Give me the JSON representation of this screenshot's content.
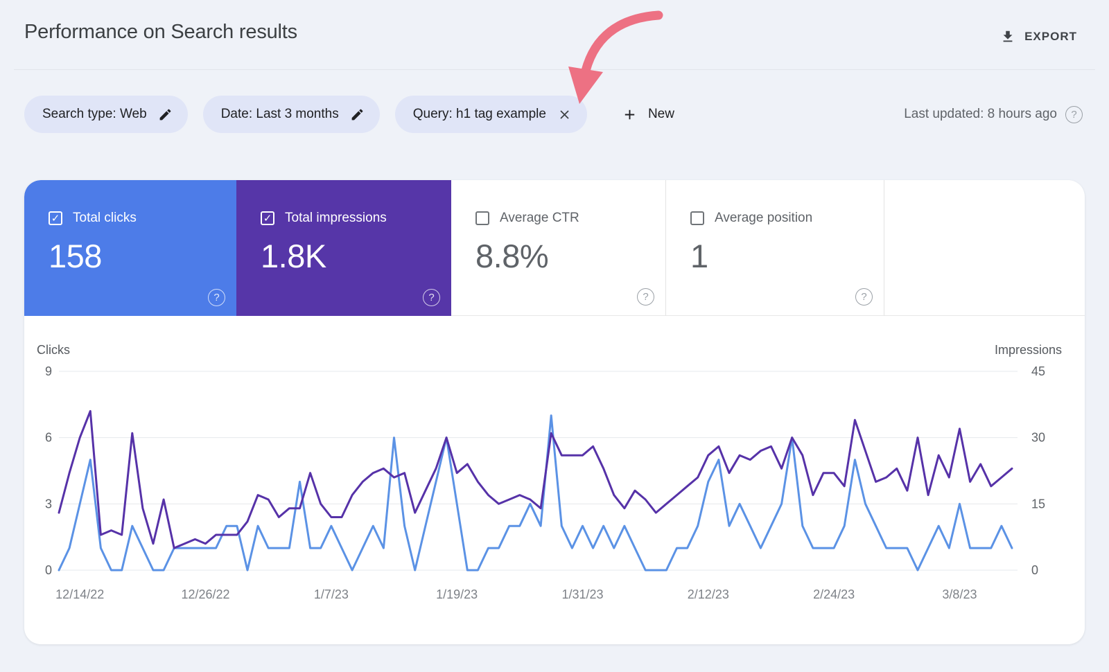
{
  "header": {
    "title": "Performance on Search results",
    "export_label": "EXPORT"
  },
  "filters": {
    "chips": [
      {
        "label": "Search type: Web",
        "icon": "pencil"
      },
      {
        "label": "Date: Last 3 months",
        "icon": "pencil"
      },
      {
        "label": "Query: h1 tag example",
        "icon": "close"
      }
    ],
    "new_button": "New",
    "last_updated": "Last updated: 8 hours ago"
  },
  "annotation": {
    "arrow_color": "#ed7183"
  },
  "metrics": [
    {
      "label": "Total clicks",
      "value": "158",
      "checked": true,
      "color": "#4d7ce8"
    },
    {
      "label": "Total impressions",
      "value": "1.8K",
      "checked": true,
      "color": "#5636a8"
    },
    {
      "label": "Average CTR",
      "value": "8.8%",
      "checked": false,
      "color": "#ffffff"
    },
    {
      "label": "Average position",
      "value": "1",
      "checked": false,
      "color": "#ffffff"
    }
  ],
  "chart_data": {
    "type": "line",
    "title": "Performance on Search results",
    "x_start_date": "12/12/22",
    "x_interval": "daily",
    "grid": true,
    "x_ticks": [
      {
        "index": 2,
        "label": "12/14/22"
      },
      {
        "index": 14,
        "label": "12/26/22"
      },
      {
        "index": 26,
        "label": "1/7/23"
      },
      {
        "index": 38,
        "label": "1/19/23"
      },
      {
        "index": 50,
        "label": "1/31/23"
      },
      {
        "index": 62,
        "label": "2/12/23"
      },
      {
        "index": 74,
        "label": "2/24/23"
      },
      {
        "index": 86,
        "label": "3/8/23"
      }
    ],
    "y_left": {
      "title": "Clicks",
      "ticks": [
        0,
        3,
        6,
        9
      ],
      "max": 9
    },
    "y_right": {
      "title": "Impressions",
      "ticks": [
        0,
        15,
        30,
        45
      ],
      "max": 45
    },
    "series": [
      {
        "name": "Clicks",
        "axis": "left",
        "color": "#5b92e5",
        "total": 158,
        "values": [
          0,
          1,
          3,
          5,
          1,
          0,
          0,
          2,
          1,
          0,
          0,
          1,
          1,
          1,
          1,
          1,
          2,
          2,
          0,
          2,
          1,
          1,
          1,
          4,
          1,
          1,
          2,
          1,
          0,
          1,
          2,
          1,
          6,
          2,
          0,
          2,
          4,
          6,
          3,
          0,
          0,
          1,
          1,
          2,
          2,
          3,
          2,
          7,
          2,
          1,
          2,
          1,
          2,
          1,
          2,
          1,
          0,
          0,
          0,
          1,
          1,
          2,
          4,
          5,
          2,
          3,
          2,
          1,
          2,
          3,
          6,
          2,
          1,
          1,
          1,
          2,
          5,
          3,
          2,
          1,
          1,
          1,
          0,
          1,
          2,
          1,
          3,
          1,
          1,
          1,
          2,
          1
        ]
      },
      {
        "name": "Impressions",
        "axis": "right",
        "color": "#5632a8",
        "total": "1.8K",
        "values": [
          13,
          22,
          30,
          36,
          8,
          9,
          8,
          31,
          14,
          6,
          16,
          5,
          6,
          7,
          6,
          8,
          8,
          8,
          11,
          17,
          16,
          12,
          14,
          14,
          22,
          15,
          12,
          12,
          17,
          20,
          22,
          23,
          21,
          22,
          13,
          18,
          23,
          30,
          22,
          24,
          20,
          17,
          15,
          16,
          17,
          16,
          14,
          31,
          26,
          26,
          26,
          28,
          23,
          17,
          14,
          18,
          16,
          13,
          15,
          17,
          19,
          21,
          26,
          28,
          22,
          26,
          25,
          27,
          28,
          23,
          30,
          26,
          17,
          22,
          22,
          19,
          34,
          27,
          20,
          21,
          23,
          18,
          30,
          17,
          26,
          21,
          32,
          20,
          24,
          19,
          21,
          23
        ]
      }
    ]
  }
}
